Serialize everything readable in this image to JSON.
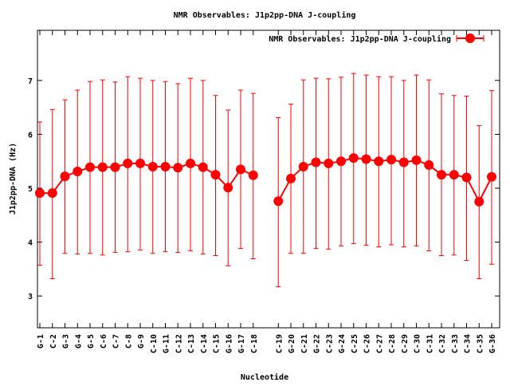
{
  "chart_data": {
    "type": "line",
    "title": "NMR Observables: J1p2pp-DNA J-coupling",
    "xlabel": "Nucleotide",
    "ylabel": "J1p2pp-DNA (Hz)",
    "ylim": [
      2.41,
      7.93
    ],
    "yticks": [
      3,
      4,
      5,
      6,
      7
    ],
    "grid": false,
    "legend": {
      "position": "top-right",
      "label": "NMR Observables: J1p2pp-DNA J-coupling"
    },
    "series_color": "#ff0000",
    "gap_after": "C-18",
    "categories": [
      "G-1",
      "C-2",
      "G-3",
      "G-4",
      "G-5",
      "C-6",
      "C-7",
      "C-8",
      "G-9",
      "C-10",
      "G-11",
      "C-12",
      "C-13",
      "C-14",
      "C-15",
      "G-16",
      "G-17",
      "C-18",
      "C-19",
      "G-20",
      "C-21",
      "G-22",
      "C-23",
      "G-24",
      "C-25",
      "C-26",
      "C-27",
      "C-28",
      "C-29",
      "C-30",
      "C-31",
      "C-32",
      "C-33",
      "C-34",
      "C-35",
      "G-36"
    ],
    "values": [
      4.91,
      4.91,
      5.22,
      5.31,
      5.39,
      5.39,
      5.39,
      5.46,
      5.46,
      5.4,
      5.4,
      5.38,
      5.46,
      5.39,
      5.25,
      5.01,
      5.35,
      5.24,
      4.76,
      5.18,
      5.4,
      5.48,
      5.46,
      5.5,
      5.56,
      5.54,
      5.5,
      5.53,
      5.48,
      5.52,
      5.43,
      5.25,
      5.25,
      5.2,
      4.75,
      5.21
    ],
    "err_low": [
      3.57,
      3.32,
      3.79,
      3.78,
      3.79,
      3.76,
      3.81,
      3.82,
      3.85,
      3.79,
      3.82,
      3.81,
      3.84,
      3.78,
      3.75,
      3.56,
      3.88,
      3.69,
      3.17,
      3.79,
      3.79,
      3.88,
      3.87,
      3.93,
      3.97,
      3.94,
      3.91,
      3.95,
      3.91,
      3.93,
      3.84,
      3.75,
      3.76,
      3.66,
      3.32,
      3.59
    ],
    "err_high": [
      6.23,
      6.46,
      6.64,
      6.82,
      6.98,
      7.01,
      6.97,
      7.07,
      7.04,
      7.0,
      6.98,
      6.94,
      7.04,
      7.0,
      6.72,
      6.45,
      6.82,
      6.76,
      6.31,
      6.56,
      7.01,
      7.04,
      7.03,
      7.06,
      7.13,
      7.1,
      7.07,
      7.07,
      7.0,
      7.1,
      7.01,
      6.75,
      6.72,
      6.71,
      6.16,
      6.81
    ]
  }
}
